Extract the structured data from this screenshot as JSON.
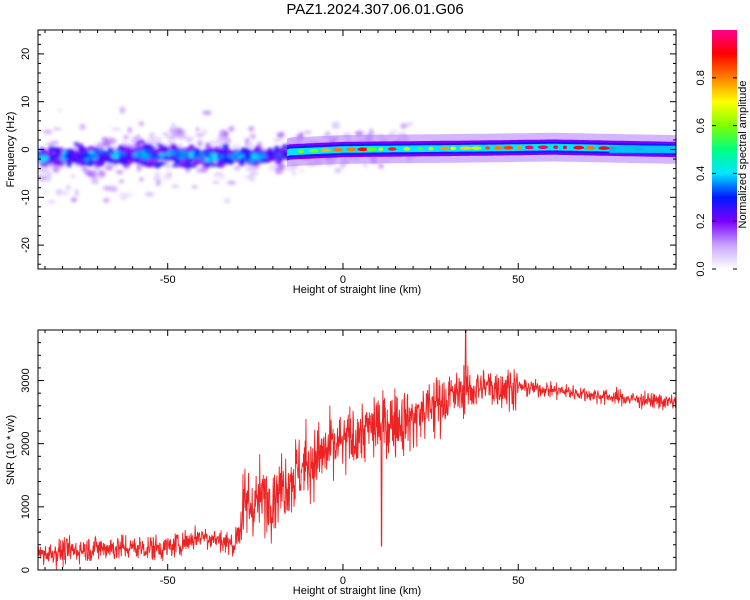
{
  "title": "PAZ1.2024.307.06.01.G06",
  "chart_data": [
    {
      "type": "heatmap",
      "title": "",
      "xlabel": "Height of straight line (km)",
      "ylabel": "Frequency (Hz)",
      "xlim": [
        -87,
        95
      ],
      "ylim": [
        -25,
        25
      ],
      "xticks": [
        -50,
        0,
        50
      ],
      "yticks": [
        -20,
        -10,
        0,
        10,
        20
      ],
      "colorbar": {
        "label": "Normalized spectral amplitude",
        "range": [
          0,
          1
        ],
        "ticks": [
          "0.0",
          "0.2",
          "0.4",
          "0.6",
          "0.8"
        ],
        "colormap": [
          "#ffffff",
          "#c8a4ff",
          "#7a00ff",
          "#0018ff",
          "#00e6ff",
          "#00ff80",
          "#80ff00",
          "#ffff00",
          "#ff8000",
          "#ff0000",
          "#ff0090"
        ]
      },
      "ridge": {
        "description_points": [
          {
            "x": -85,
            "y": -1.5
          },
          {
            "x": -60,
            "y": -1.0
          },
          {
            "x": -40,
            "y": -1.5
          },
          {
            "x": -20,
            "y": -1.5
          },
          {
            "x": -15,
            "y": -0.5
          },
          {
            "x": 0,
            "y": 0.0
          },
          {
            "x": 40,
            "y": 0.3
          },
          {
            "x": 60,
            "y": 0.5
          },
          {
            "x": 95,
            "y": 0.0
          }
        ]
      }
    },
    {
      "type": "line",
      "title": "",
      "xlabel": "Height of straight line (km)",
      "ylabel": "SNR (10 * v/v)",
      "xlim": [
        -87,
        95
      ],
      "ylim": [
        0,
        3800
      ],
      "xticks": [
        -50,
        0,
        50
      ],
      "yticks": [
        0,
        1000,
        2000,
        3000
      ],
      "color": "#ee2222",
      "trend": [
        {
          "x": -87,
          "y": 250
        },
        {
          "x": -70,
          "y": 350
        },
        {
          "x": -50,
          "y": 350
        },
        {
          "x": -40,
          "y": 550
        },
        {
          "x": -31,
          "y": 400
        },
        {
          "x": -28,
          "y": 1000
        },
        {
          "x": -20,
          "y": 1200
        },
        {
          "x": -10,
          "y": 1700
        },
        {
          "x": 0,
          "y": 2000
        },
        {
          "x": 10,
          "y": 2300
        },
        {
          "x": 20,
          "y": 2400
        },
        {
          "x": 30,
          "y": 2750
        },
        {
          "x": 40,
          "y": 2900
        },
        {
          "x": 50,
          "y": 2900
        },
        {
          "x": 60,
          "y": 2850
        },
        {
          "x": 70,
          "y": 2780
        },
        {
          "x": 80,
          "y": 2720
        },
        {
          "x": 95,
          "y": 2650
        }
      ],
      "notable_points": [
        {
          "x": 35,
          "y": 3800
        },
        {
          "x": 11,
          "y": 380
        }
      ]
    }
  ]
}
